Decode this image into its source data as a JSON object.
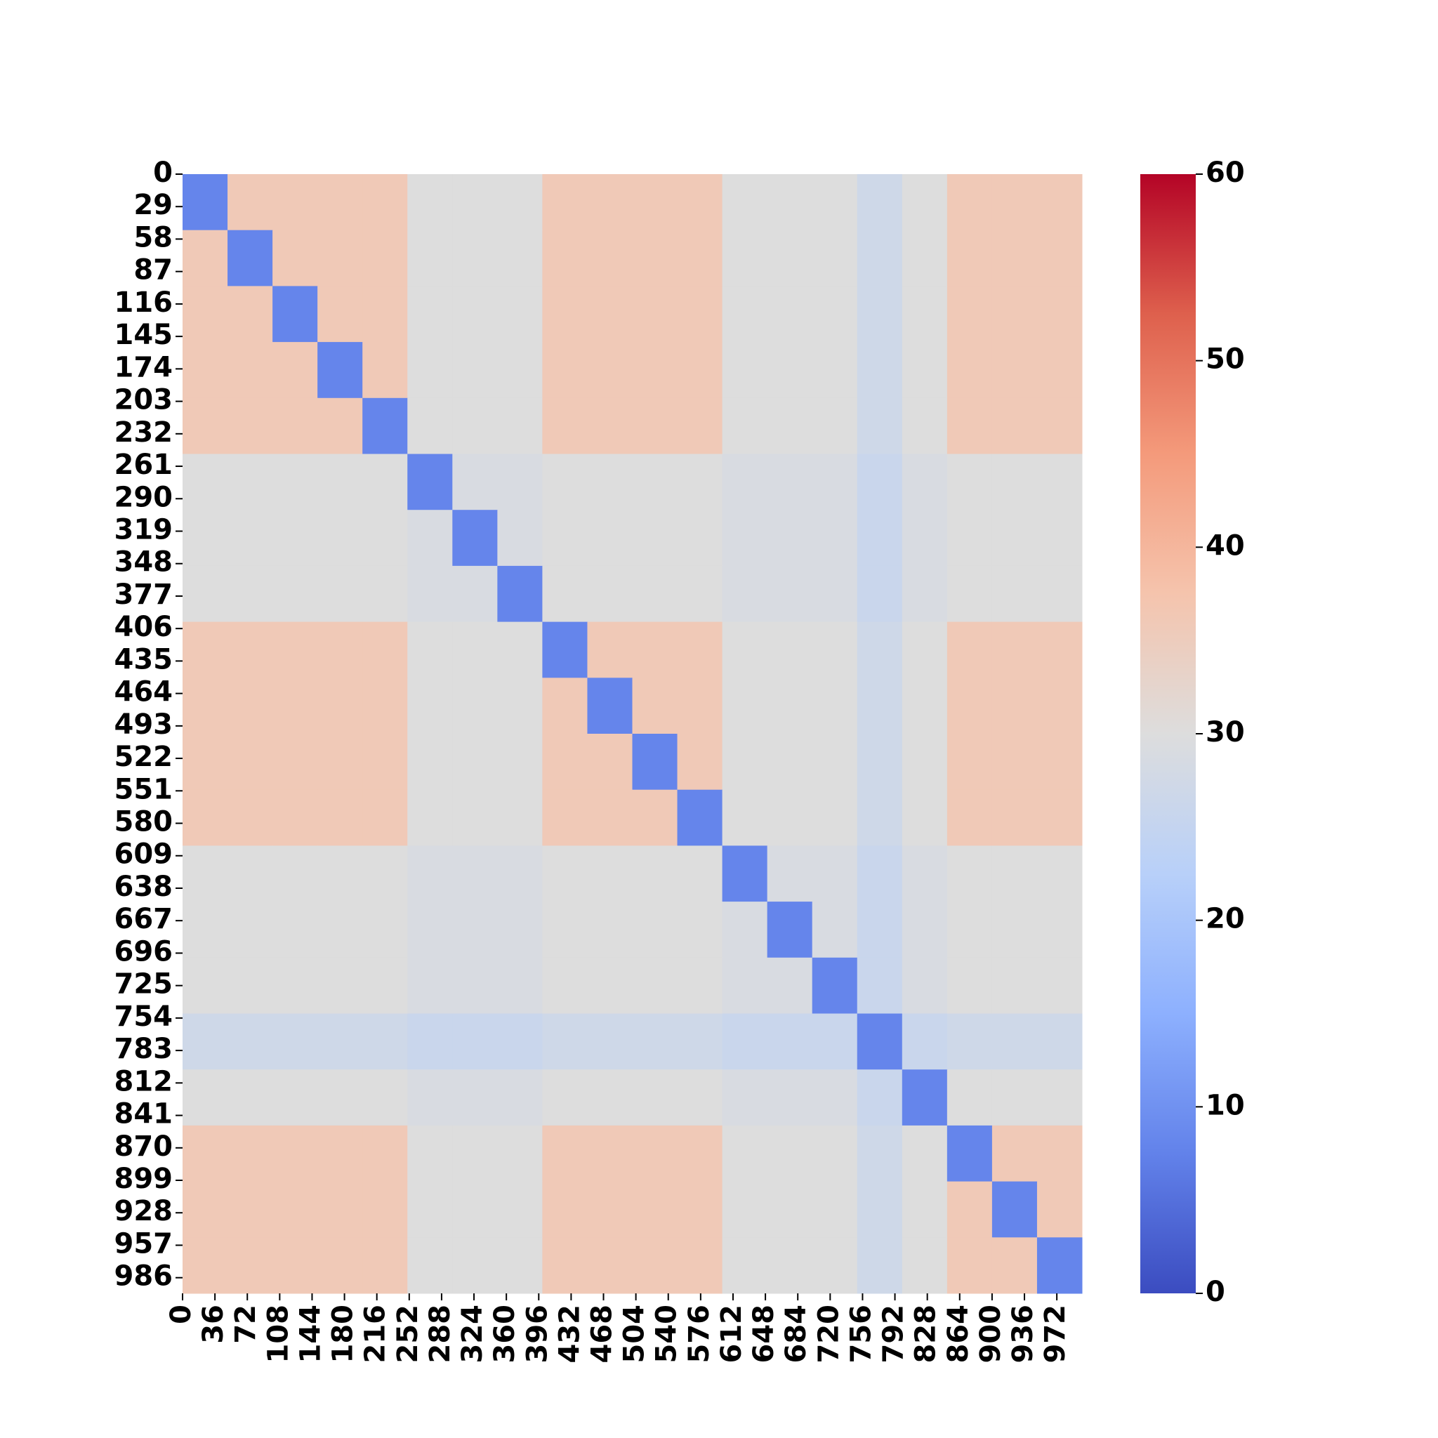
{
  "chart_data": {
    "type": "heatmap",
    "colormap": "coolwarm",
    "xlim": [
      0,
      1000
    ],
    "ylim": [
      0,
      1000
    ],
    "xticks": [
      0,
      36,
      72,
      108,
      144,
      180,
      216,
      252,
      288,
      324,
      360,
      396,
      432,
      468,
      504,
      540,
      576,
      612,
      648,
      684,
      720,
      756,
      792,
      828,
      864,
      900,
      936,
      972
    ],
    "yticks": [
      0,
      29,
      58,
      87,
      116,
      145,
      174,
      203,
      232,
      261,
      290,
      319,
      348,
      377,
      406,
      435,
      464,
      493,
      522,
      551,
      580,
      609,
      638,
      667,
      696,
      725,
      754,
      783,
      812,
      841,
      870,
      899,
      928,
      957,
      986
    ],
    "zlim": [
      0,
      60
    ],
    "zticks": [
      0,
      10,
      20,
      30,
      40,
      50,
      60
    ],
    "matrix": [
      [
        8,
        36,
        36,
        36,
        36,
        30,
        30,
        30,
        36,
        36,
        36,
        36,
        30,
        30,
        30,
        27,
        30,
        36,
        36,
        36
      ],
      [
        36,
        8,
        36,
        36,
        36,
        30,
        30,
        30,
        36,
        36,
        36,
        36,
        30,
        30,
        30,
        27,
        30,
        36,
        36,
        36
      ],
      [
        36,
        36,
        8,
        36,
        36,
        30,
        30,
        30,
        36,
        36,
        36,
        36,
        30,
        30,
        30,
        27,
        30,
        36,
        36,
        36
      ],
      [
        36,
        36,
        36,
        8,
        36,
        30,
        30,
        30,
        36,
        36,
        36,
        36,
        30,
        30,
        30,
        27,
        30,
        36,
        36,
        36
      ],
      [
        36,
        36,
        36,
        36,
        8,
        30,
        30,
        30,
        36,
        36,
        36,
        36,
        30,
        30,
        30,
        27,
        30,
        36,
        36,
        36
      ],
      [
        30,
        30,
        30,
        30,
        30,
        8,
        29,
        29,
        30,
        30,
        30,
        30,
        29,
        29,
        29,
        26,
        29,
        30,
        30,
        30
      ],
      [
        30,
        30,
        30,
        30,
        30,
        29,
        8,
        29,
        30,
        30,
        30,
        30,
        29,
        29,
        29,
        26,
        29,
        30,
        30,
        30
      ],
      [
        30,
        30,
        30,
        30,
        30,
        29,
        29,
        8,
        30,
        30,
        30,
        30,
        29,
        29,
        29,
        26,
        29,
        30,
        30,
        30
      ],
      [
        36,
        36,
        36,
        36,
        36,
        30,
        30,
        30,
        8,
        36,
        36,
        36,
        30,
        30,
        30,
        27,
        30,
        36,
        36,
        36
      ],
      [
        36,
        36,
        36,
        36,
        36,
        30,
        30,
        30,
        36,
        8,
        36,
        36,
        30,
        30,
        30,
        27,
        30,
        36,
        36,
        36
      ],
      [
        36,
        36,
        36,
        36,
        36,
        30,
        30,
        30,
        36,
        36,
        8,
        36,
        30,
        30,
        30,
        27,
        30,
        36,
        36,
        36
      ],
      [
        36,
        36,
        36,
        36,
        36,
        30,
        30,
        30,
        36,
        36,
        36,
        8,
        30,
        30,
        30,
        27,
        30,
        36,
        36,
        36
      ],
      [
        30,
        30,
        30,
        30,
        30,
        29,
        29,
        29,
        30,
        30,
        30,
        30,
        8,
        29,
        29,
        26,
        29,
        30,
        30,
        30
      ],
      [
        30,
        30,
        30,
        30,
        30,
        29,
        29,
        29,
        30,
        30,
        30,
        30,
        29,
        8,
        29,
        26,
        29,
        30,
        30,
        30
      ],
      [
        30,
        30,
        30,
        30,
        30,
        29,
        29,
        29,
        30,
        30,
        30,
        30,
        29,
        29,
        8,
        26,
        29,
        30,
        30,
        30
      ],
      [
        27,
        27,
        27,
        27,
        27,
        26,
        26,
        26,
        27,
        27,
        27,
        27,
        26,
        26,
        26,
        8,
        26,
        27,
        27,
        27
      ],
      [
        30,
        30,
        30,
        30,
        30,
        29,
        29,
        29,
        30,
        30,
        30,
        30,
        29,
        29,
        29,
        26,
        8,
        30,
        30,
        30
      ],
      [
        36,
        36,
        36,
        36,
        36,
        30,
        30,
        30,
        36,
        36,
        36,
        36,
        30,
        30,
        30,
        27,
        30,
        8,
        36,
        36
      ],
      [
        36,
        36,
        36,
        36,
        36,
        30,
        30,
        30,
        36,
        36,
        36,
        36,
        30,
        30,
        30,
        27,
        30,
        36,
        8,
        36
      ],
      [
        36,
        36,
        36,
        36,
        36,
        30,
        30,
        30,
        36,
        36,
        36,
        36,
        30,
        30,
        30,
        27,
        30,
        36,
        36,
        8
      ]
    ]
  }
}
